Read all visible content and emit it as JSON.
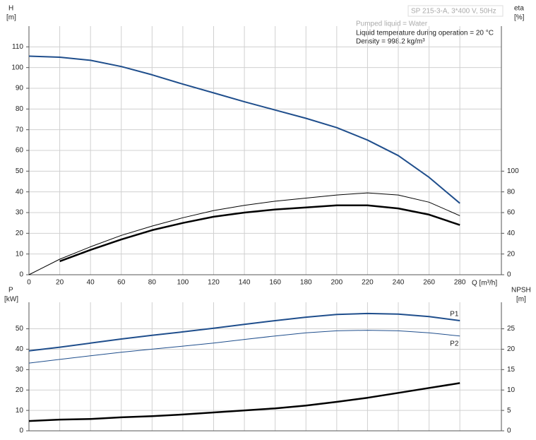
{
  "chart_data": [
    {
      "type": "line",
      "title": "SP 215-3-A, 3*400 V, 50Hz",
      "annotations": [
        "Pumped liquid = Water",
        "Liquid temperature during operation = 20 °C",
        "Density = 998.2 kg/m³"
      ],
      "x_label": "Q [m³/h]",
      "y_label": "H",
      "y_unit": "[m]",
      "y2_label": "eta",
      "y2_unit": "[%]",
      "x": [
        0,
        20,
        40,
        60,
        80,
        100,
        120,
        140,
        160,
        180,
        200,
        220,
        240,
        260,
        280
      ],
      "xlim": [
        0,
        307
      ],
      "xticks": [
        0,
        20,
        40,
        60,
        80,
        100,
        120,
        140,
        160,
        180,
        200,
        220,
        240,
        260,
        280
      ],
      "ylim": [
        0,
        120
      ],
      "yticks": [
        0,
        10,
        20,
        30,
        40,
        50,
        60,
        70,
        80,
        90,
        100,
        110
      ],
      "y2lim": [
        0,
        240
      ],
      "y2ticks": [
        0,
        20,
        40,
        60,
        80,
        100
      ],
      "grid": true,
      "series": [
        {
          "color": "#1f4e8c",
          "width": 2,
          "values": [
            105.5,
            105,
            103.5,
            100.5,
            96.5,
            92,
            87.8,
            83.5,
            79.5,
            75.5,
            71,
            65,
            57.5,
            47,
            34.5
          ]
        },
        {
          "color": "#000000",
          "width": 1,
          "axis": "y2",
          "values": [
            0,
            15,
            27,
            38,
            47,
            55,
            62,
            67,
            71,
            74,
            77,
            79,
            77,
            70,
            57
          ]
        },
        {
          "color": "#000000",
          "width": 2.5,
          "axis": "y2",
          "values": [
            null,
            13,
            24,
            34,
            43,
            50,
            56,
            60,
            63,
            65,
            67,
            67,
            64,
            58,
            48
          ]
        }
      ]
    },
    {
      "type": "line",
      "y_label": "P",
      "y_unit": "[kW]",
      "y2_label": "NPSH",
      "y2_unit": "[m]",
      "x": [
        0,
        20,
        40,
        60,
        80,
        100,
        120,
        140,
        160,
        180,
        200,
        220,
        240,
        260,
        280
      ],
      "xlim": [
        0,
        307
      ],
      "ylim": [
        0,
        63
      ],
      "yticks": [
        0,
        10,
        20,
        30,
        40,
        50
      ],
      "y2lim": [
        0,
        31.5
      ],
      "y2ticks": [
        0,
        5,
        10,
        15,
        20,
        25
      ],
      "grid": true,
      "series": [
        {
          "name": "P1",
          "color": "#1f4e8c",
          "width": 2,
          "values": [
            39.2,
            41,
            43,
            45,
            46.8,
            48.5,
            50.3,
            52.2,
            54,
            55.7,
            57,
            57.5,
            57.2,
            56,
            54
          ]
        },
        {
          "name": "P2",
          "color": "#1f4e8c",
          "width": 1,
          "values": [
            33.2,
            35,
            36.8,
            38.5,
            40,
            41.5,
            43,
            44.8,
            46.5,
            48,
            49,
            49.3,
            49,
            48,
            46.5
          ]
        },
        {
          "color": "#000000",
          "width": 2.5,
          "axis": "y2",
          "values": [
            2.4,
            2.75,
            2.9,
            3.3,
            3.6,
            4.0,
            4.5,
            5.0,
            5.5,
            6.2,
            7.1,
            8.1,
            9.3,
            10.5,
            11.7
          ]
        }
      ]
    }
  ]
}
